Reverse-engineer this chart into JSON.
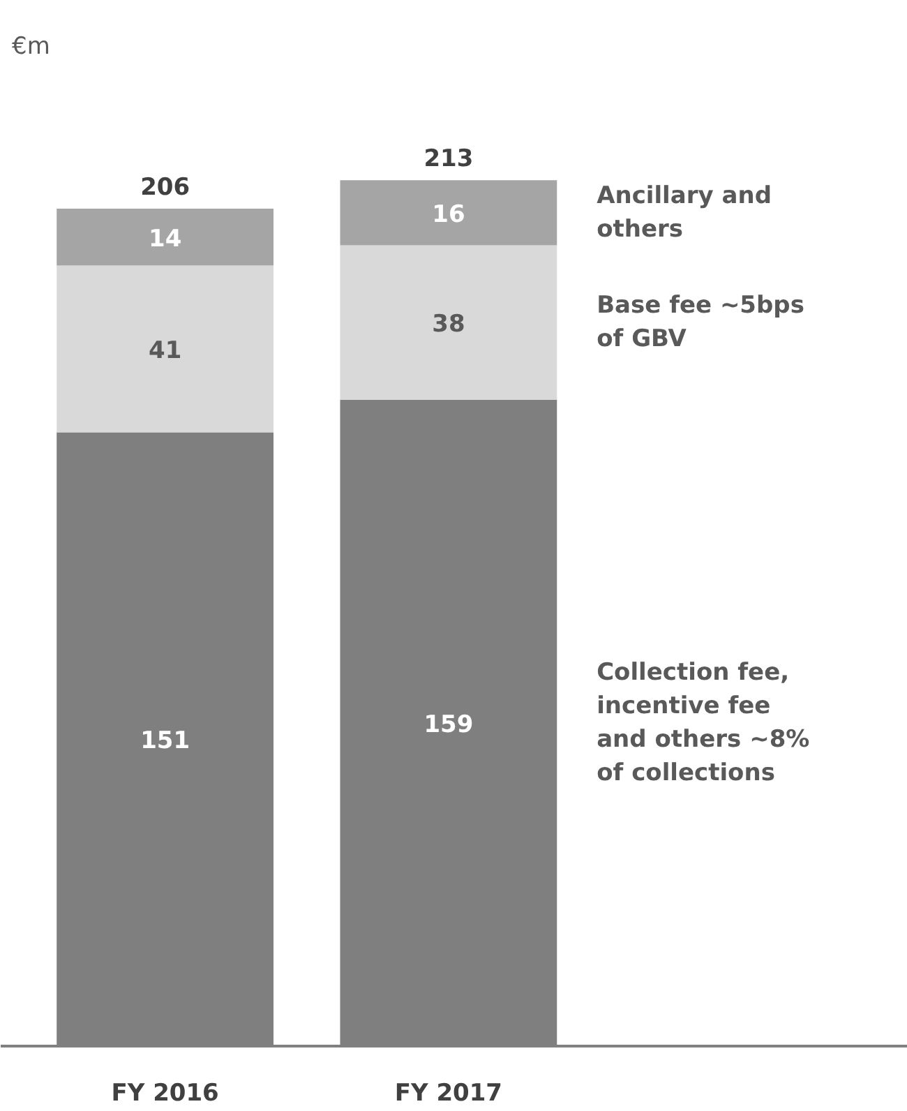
{
  "chart_data": {
    "type": "bar",
    "title": "€m",
    "categories": [
      "FY 2016",
      "FY 2017"
    ],
    "stacked": true,
    "data_labels": true,
    "series": [
      {
        "name": "Collection fee, incentive fee and others ~8% of collections",
        "color": "#7f7f7f",
        "values": [
          151,
          159
        ]
      },
      {
        "name": "Base fee ~5bps of GBV",
        "color": "#d9d9d9",
        "values": [
          41,
          38
        ]
      },
      {
        "name": "Ancillary and others",
        "color": "#a5a5a5",
        "values": [
          14,
          16
        ]
      }
    ],
    "totals": [
      "206",
      "213"
    ]
  }
}
